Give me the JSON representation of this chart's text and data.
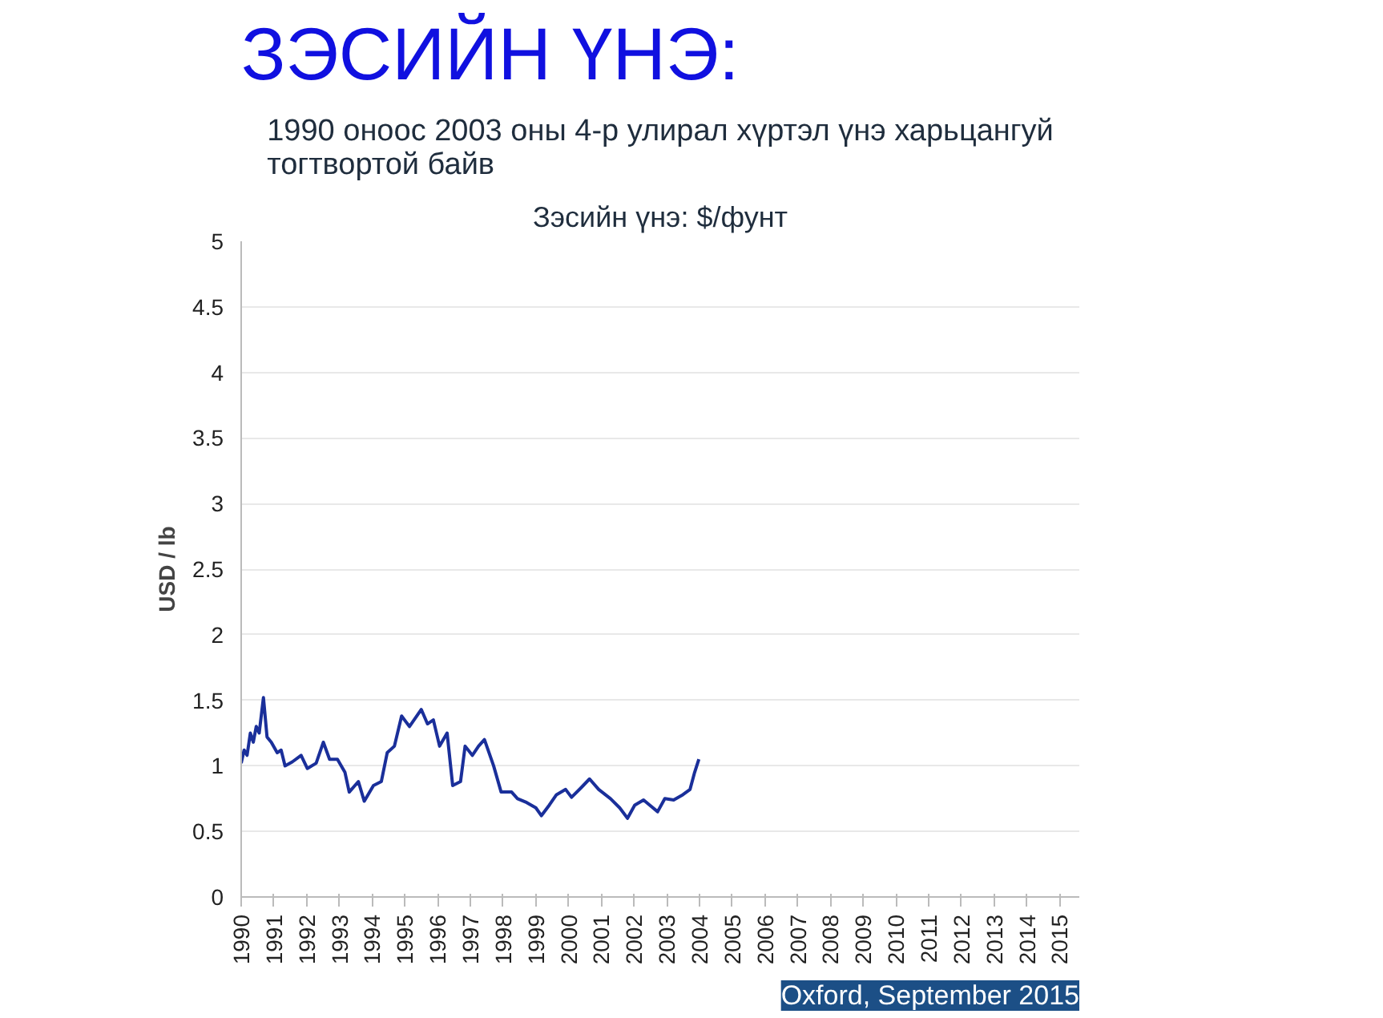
{
  "chart_data": {
    "type": "line",
    "title": "ЗЭСИЙН ҮНЭ:",
    "subtitle": "1990 оноос 2003 оны 4-р улирал хүртэл үнэ харьцангуй\nтогтвортой байв",
    "ylabel": "USD / lb",
    "annotations": [
      "Зэсийн үнэ: $/фунт",
      "Oxford, September 2015"
    ],
    "x": [
      1990.0,
      1990.09,
      1990.18,
      1990.28,
      1990.37,
      1990.46,
      1990.55,
      1990.68,
      1990.79,
      1990.92,
      1991.1,
      1991.22,
      1991.34,
      1991.56,
      1991.83,
      1992.02,
      1992.29,
      1992.51,
      1992.7,
      1992.94,
      1993.17,
      1993.3,
      1993.58,
      1993.76,
      1994.04,
      1994.28,
      1994.46,
      1994.68,
      1994.9,
      1995.14,
      1995.28,
      1995.5,
      1995.69,
      1995.87,
      1996.06,
      1996.29,
      1996.46,
      1996.7,
      1996.84,
      1997.06,
      1997.25,
      1997.43,
      1997.71,
      1997.94,
      1998.26,
      1998.44,
      1998.72,
      1999.0,
      1999.17,
      1999.41,
      1999.63,
      1999.91,
      2000.09,
      2000.37,
      2000.64,
      2000.92,
      2001.28,
      2001.56,
      2001.8,
      2002.02,
      2002.29,
      2002.48,
      2002.72,
      2002.94,
      2003.21,
      2003.49,
      2003.71,
      2003.85,
      2003.98
    ],
    "series": [
      {
        "color": "#1a2f9a",
        "values": [
          1.02,
          1.12,
          1.08,
          1.25,
          1.18,
          1.3,
          1.25,
          1.52,
          1.22,
          1.18,
          1.1,
          1.12,
          1.0,
          1.03,
          1.08,
          0.98,
          1.02,
          1.18,
          1.05,
          1.05,
          0.95,
          0.8,
          0.88,
          0.73,
          0.85,
          0.88,
          1.1,
          1.15,
          1.38,
          1.3,
          1.35,
          1.43,
          1.32,
          1.35,
          1.15,
          1.25,
          0.85,
          0.88,
          1.15,
          1.08,
          1.15,
          1.2,
          1.0,
          0.8,
          0.8,
          0.75,
          0.72,
          0.68,
          0.62,
          0.7,
          0.78,
          0.82,
          0.76,
          0.83,
          0.9,
          0.82,
          0.75,
          0.68,
          0.6,
          0.7,
          0.74,
          0.7,
          0.65,
          0.75,
          0.74,
          0.78,
          0.82,
          0.95,
          1.05
        ]
      }
    ],
    "xlim": [
      1990,
      2015.6
    ],
    "xticks": [
      1990,
      1991,
      1992,
      1993,
      1994,
      1995,
      1996,
      1997,
      1998,
      1999,
      2000,
      2001,
      2002,
      2003,
      2004,
      2005,
      2006,
      2007,
      2008,
      2009,
      2010,
      2011,
      2012,
      2013,
      2014,
      2015
    ],
    "ylim": [
      0,
      5
    ],
    "yticks": [
      0,
      0.5,
      1,
      1.5,
      2,
      2.5,
      3,
      3.5,
      4,
      4.5,
      5
    ],
    "grid": "y"
  }
}
